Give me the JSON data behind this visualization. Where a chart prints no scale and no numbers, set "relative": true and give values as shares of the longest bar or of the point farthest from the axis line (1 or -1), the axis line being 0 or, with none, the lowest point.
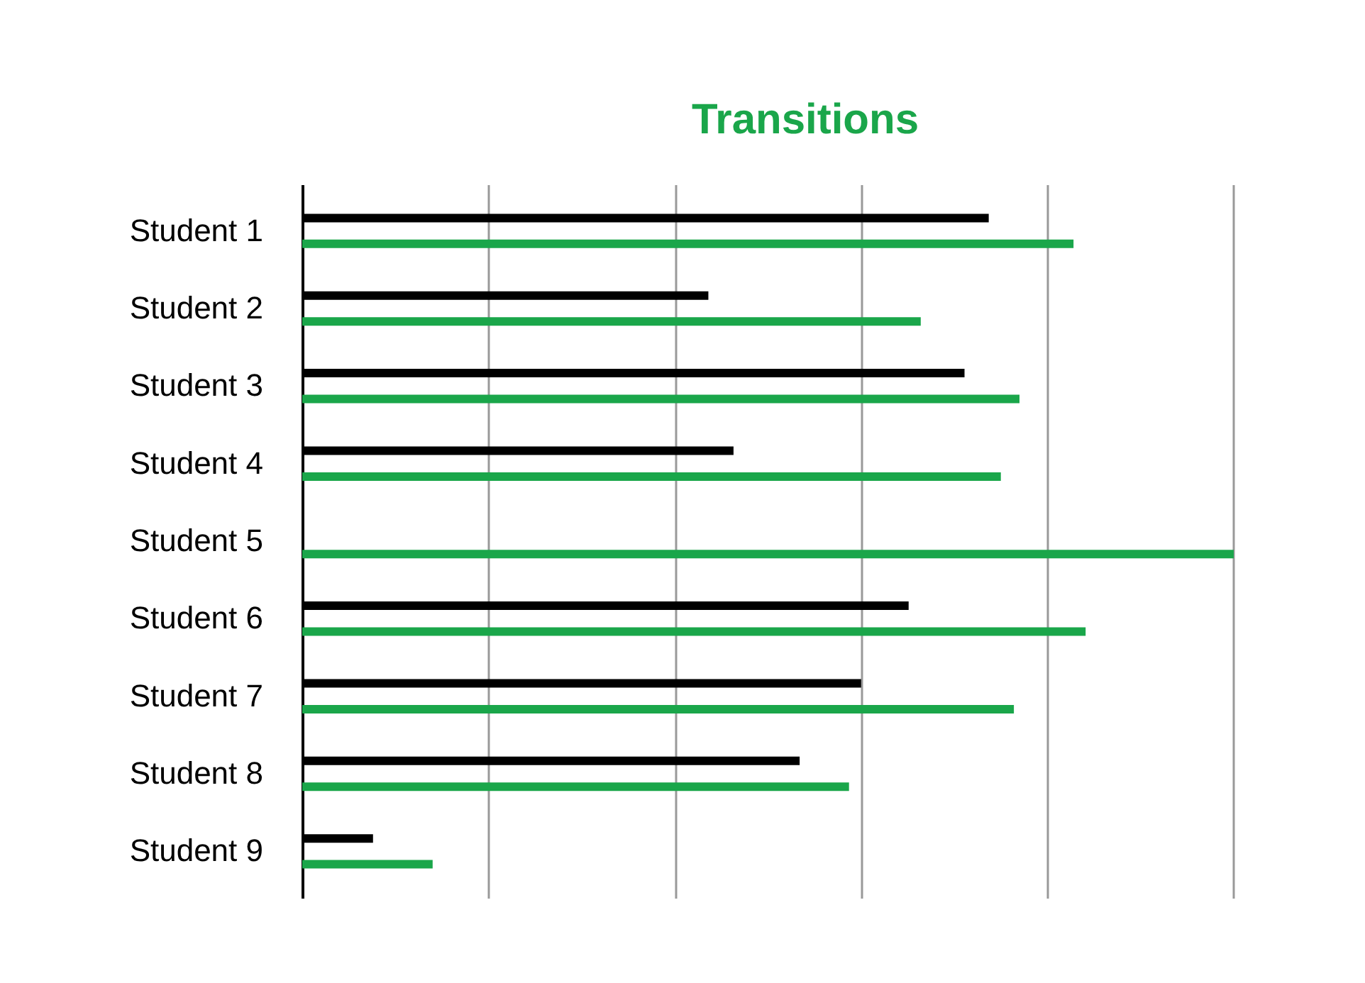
{
  "chart_data": {
    "type": "bar",
    "orientation": "horizontal",
    "relative": true,
    "title": "Transitions",
    "categories": [
      "Student 1",
      "Student 2",
      "Student 3",
      "Student 4",
      "Student 5",
      "Student 6",
      "Student 7",
      "Student 8",
      "Student 9"
    ],
    "series": [
      {
        "color": "#000000",
        "values": [
          0.737,
          0.436,
          0.711,
          0.463,
          null,
          0.651,
          0.6,
          0.534,
          0.076
        ]
      },
      {
        "color": "#1aa64a",
        "values": [
          0.828,
          0.664,
          0.77,
          0.75,
          1,
          0.841,
          0.764,
          0.587,
          0.14
        ]
      }
    ],
    "grid": "x",
    "tick_labels": "y"
  }
}
